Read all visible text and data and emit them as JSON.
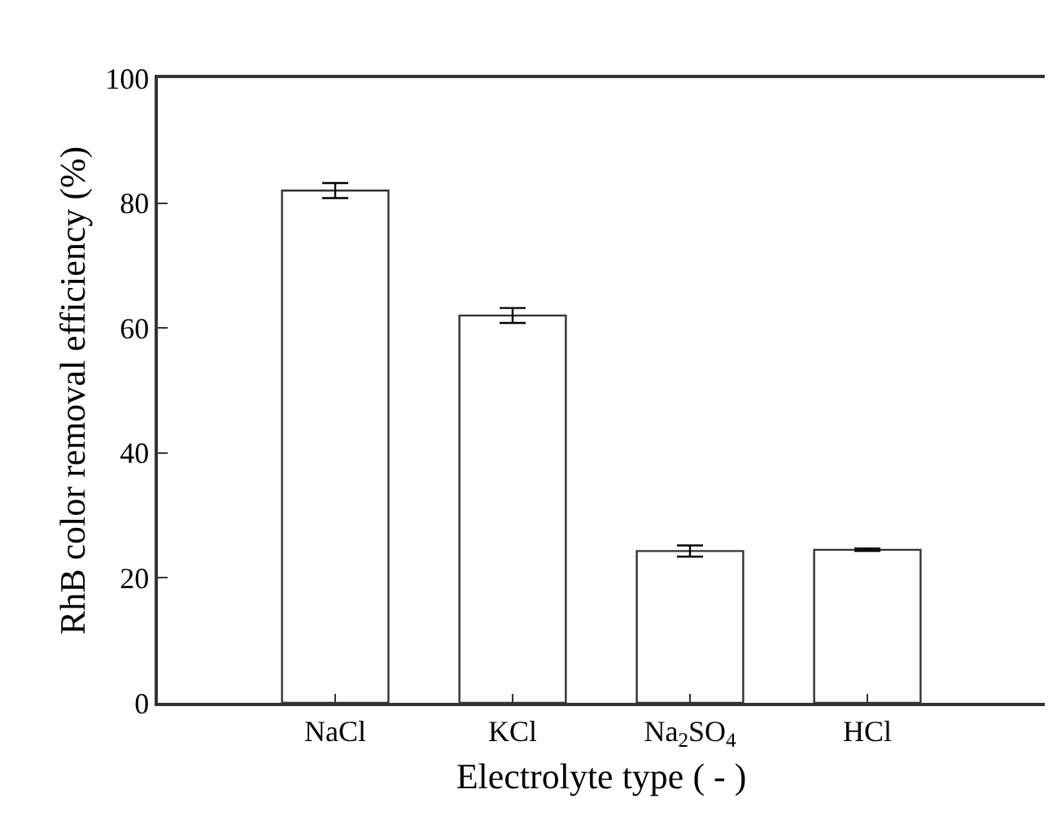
{
  "chart_data": {
    "type": "bar",
    "categories": [
      "NaCl",
      "KCl",
      "Na$_{2}$SO$_{4}$",
      "HCl"
    ],
    "values": [
      82,
      62,
      24.3,
      24.5
    ],
    "errors": [
      1.2,
      1.2,
      0.9,
      0.2
    ],
    "colors": [
      "#ffffff",
      "#ffffff",
      "#ffffff",
      "#ffffff"
    ],
    "xlabel": "Electrolyte type ( - )",
    "ylabel": "RhB color removal efficiency (%)",
    "ylim": [
      0,
      100
    ],
    "yticks": [
      0,
      20,
      40,
      60,
      80,
      100
    ]
  }
}
